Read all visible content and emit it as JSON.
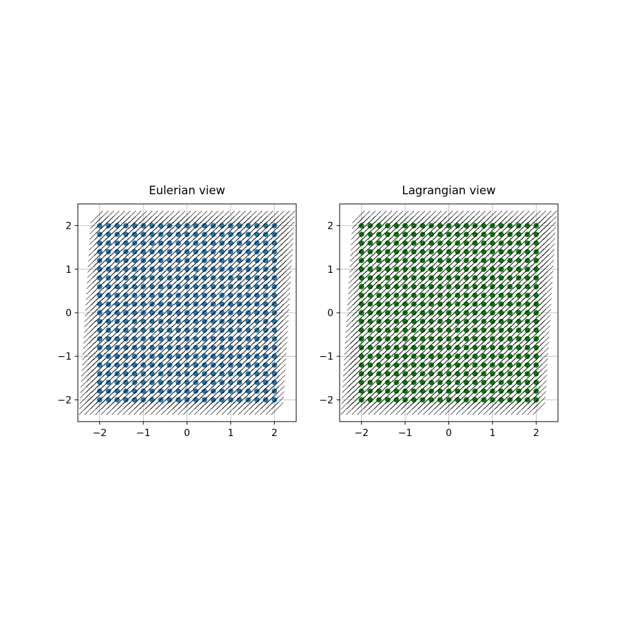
{
  "chart_data": [
    {
      "type": "scatter",
      "title": "Eulerian view",
      "xlabel": "",
      "ylabel": "",
      "xlim": [
        -2.5,
        2.5
      ],
      "ylim": [
        -2.5,
        2.5
      ],
      "xticks": [
        -2,
        -1,
        0,
        1,
        2
      ],
      "yticks": [
        -2,
        -1,
        0,
        1,
        2
      ],
      "xtick_labels": [
        "−2",
        "−1",
        "0",
        "1",
        "2"
      ],
      "ytick_labels": [
        "−2",
        "−1",
        "0",
        "1",
        "2"
      ],
      "grid": true,
      "points": {
        "grid_min": -2,
        "grid_max": 2,
        "count_per_axis": 21,
        "color": "#1f77b4"
      },
      "vector_field": {
        "grid_min": -2.2,
        "grid_max": 2.2,
        "count_per_axis": 36,
        "arrow_dx": 0.28,
        "arrow_dy": 0.28,
        "shear_dx_per_y": 0.06,
        "color": "#000000"
      }
    },
    {
      "type": "scatter",
      "title": "Lagrangian view",
      "xlabel": "",
      "ylabel": "",
      "xlim": [
        -2.5,
        2.5
      ],
      "ylim": [
        -2.5,
        2.5
      ],
      "xticks": [
        -2,
        -1,
        0,
        1,
        2
      ],
      "yticks": [
        -2,
        -1,
        0,
        1,
        2
      ],
      "xtick_labels": [
        "−2",
        "−1",
        "0",
        "1",
        "2"
      ],
      "ytick_labels": [
        "−2",
        "−1",
        "0",
        "1",
        "2"
      ],
      "grid": true,
      "points": {
        "grid_min": -2,
        "grid_max": 2,
        "count_per_axis": 21,
        "color": "#008000"
      },
      "vector_field": {
        "grid_min": -2.2,
        "grid_max": 2.2,
        "count_per_axis": 36,
        "arrow_dx": 0.28,
        "arrow_dy": 0.28,
        "shear_dx_per_y": 0.06,
        "color": "#000000"
      }
    }
  ]
}
